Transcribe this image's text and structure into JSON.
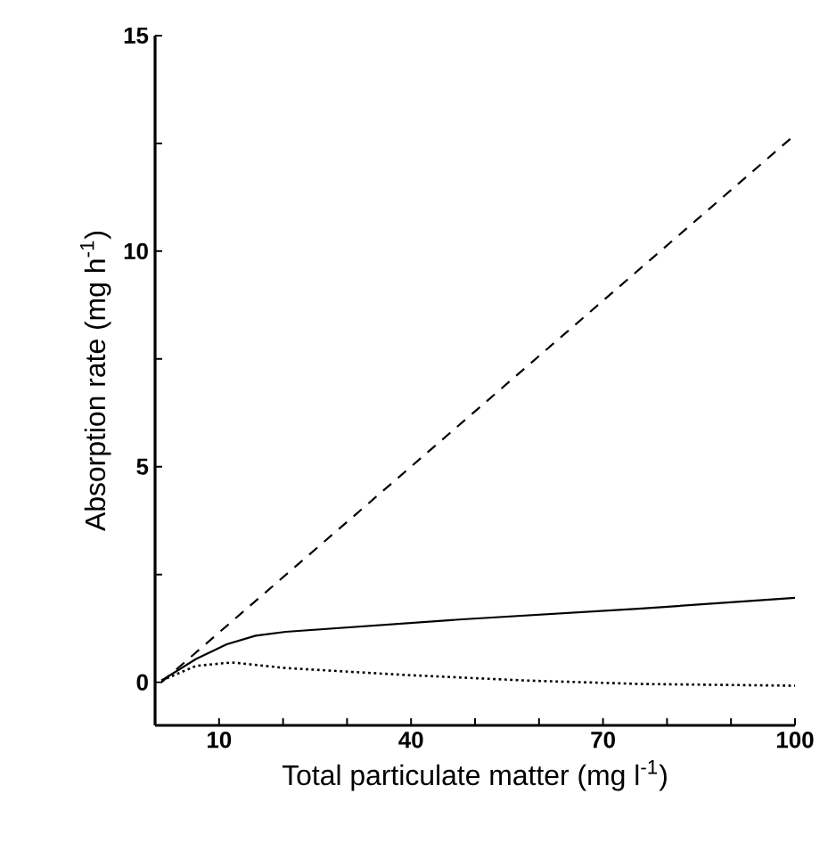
{
  "chart_data": {
    "type": "line",
    "xlabel": "Total particulate matter (mg l$^{-1}$)",
    "ylabel": "Absorption rate  (mg h$^{-1}$)",
    "xlim": [
      0,
      100
    ],
    "ylim": [
      -1,
      15
    ],
    "xticks": [
      10,
      {
        "value": 20,
        "label": null
      },
      {
        "value": 30,
        "label": null
      },
      40,
      {
        "value": 50,
        "label": null
      },
      {
        "value": 60,
        "label": null
      },
      70,
      {
        "value": 80,
        "label": null
      },
      {
        "value": 90,
        "label": null
      },
      100
    ],
    "yticks": [
      0,
      {
        "value": 2.5,
        "label": null
      },
      5,
      {
        "value": 7.5,
        "label": null
      },
      10,
      {
        "value": 12.5,
        "label": null
      },
      15
    ],
    "marker": "none",
    "series": [
      {
        "color": "#000000",
        "line_style": "dashed",
        "x": [
          1,
          100
        ],
        "values": [
          0,
          12.7
        ]
      },
      {
        "color": "#000000",
        "line_style": "solid",
        "x": [
          1,
          6.4,
          11.2,
          15.7,
          20.4,
          48,
          76,
          100
        ],
        "values": [
          0.04,
          0.54,
          0.88,
          1.08,
          1.17,
          1.46,
          1.71,
          1.96
        ]
      },
      {
        "color": "#000000",
        "line_style": "dotted",
        "x": [
          1,
          6.4,
          12,
          20.4,
          39,
          58,
          76,
          100
        ],
        "values": [
          0.04,
          0.38,
          0.46,
          0.33,
          0.17,
          0.04,
          -0.04,
          -0.08
        ]
      }
    ]
  }
}
